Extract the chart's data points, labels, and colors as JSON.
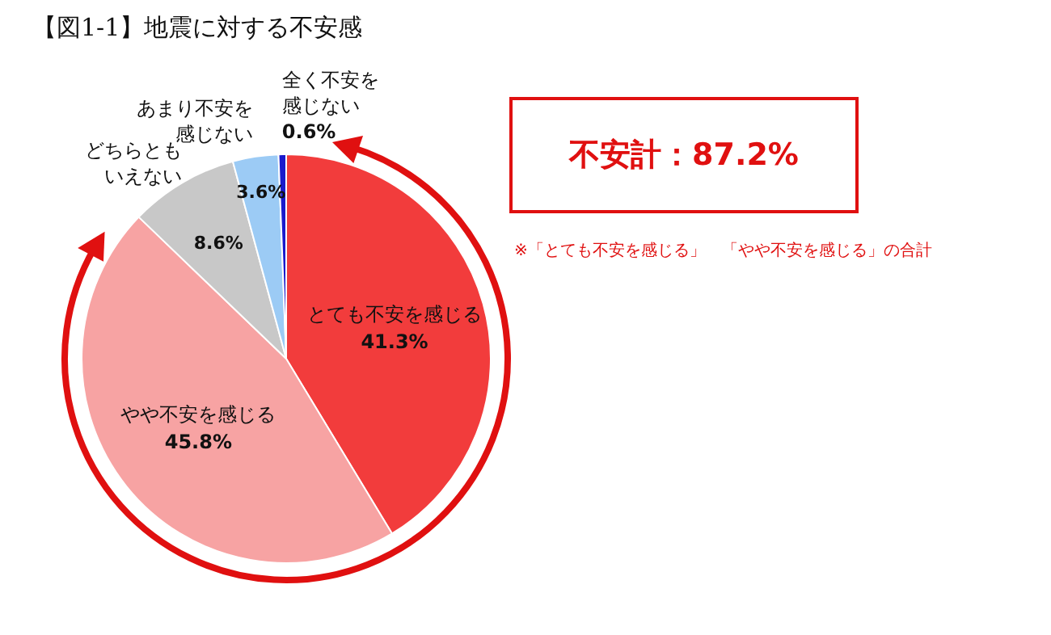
{
  "chart_data": {
    "type": "pie",
    "title": "【図1-1】地震に対する不安感",
    "categories": [
      "とても不安を感じる",
      "やや不安を感じる",
      "どちらともいえない",
      "あまり不安を感じない",
      "全く不安を感じない"
    ],
    "values": [
      41.3,
      45.8,
      8.6,
      3.6,
      0.6
    ],
    "value_labels": [
      "41.3%",
      "45.8%",
      "8.6%",
      "3.6%",
      "0.6%"
    ],
    "colors": [
      "#f23c3c",
      "#f7a3a3",
      "#c8c8c8",
      "#9ccbf5",
      "#1a1acc"
    ],
    "legend": false,
    "annotations": [
      "不安計：87.2%",
      "※「とても不安を感じる」　「やや不安を感じる」の合計"
    ]
  }
}
